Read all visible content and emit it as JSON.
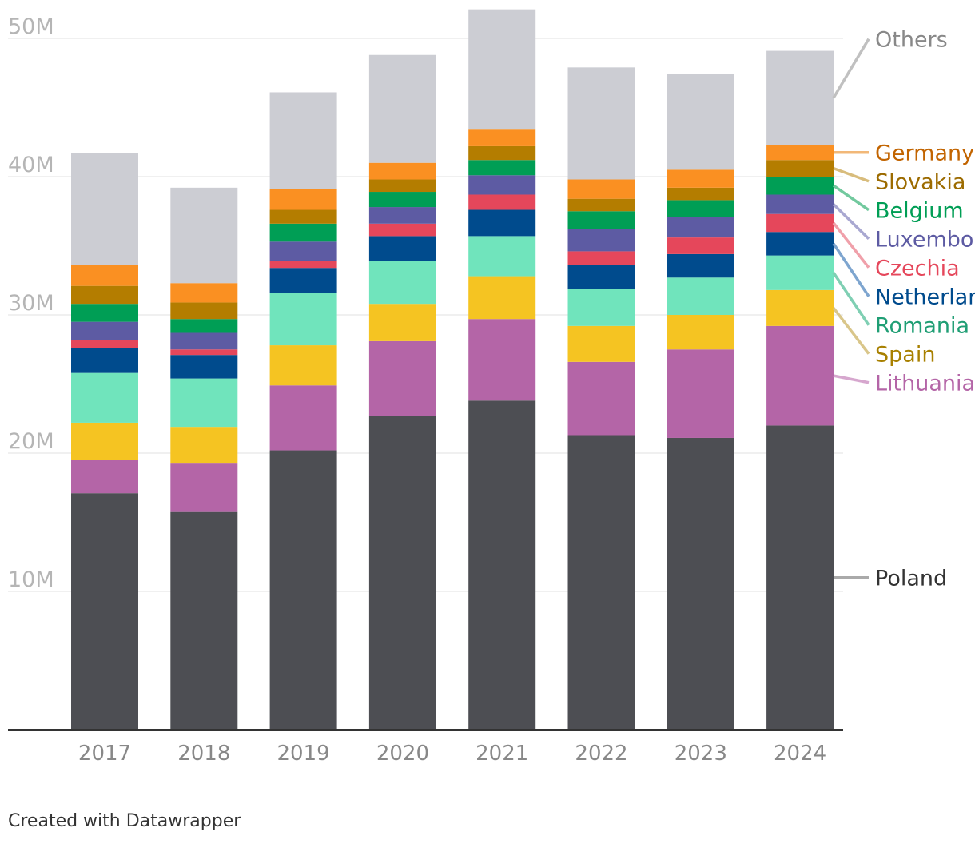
{
  "chart_data": {
    "type": "bar",
    "stacked": true,
    "title": "",
    "xlabel": "",
    "ylabel": "",
    "ylim": [
      0,
      51000000
    ],
    "y_ticks": [
      {
        "value": 10000000,
        "label": "10M"
      },
      {
        "value": 20000000,
        "label": "20M"
      },
      {
        "value": 30000000,
        "label": "30M"
      },
      {
        "value": 40000000,
        "label": "40M"
      },
      {
        "value": 50000000,
        "label": "50M"
      }
    ],
    "categories": [
      "2017",
      "2018",
      "2019",
      "2020",
      "2021",
      "2022",
      "2023",
      "2024"
    ],
    "series": [
      {
        "name": "Poland",
        "color": "#4d4e53",
        "label_color": "#333333",
        "leader_color": "#aaaaaa",
        "values": [
          17100000,
          15800000,
          20200000,
          22700000,
          23800000,
          21300000,
          21100000,
          22000000
        ]
      },
      {
        "name": "Lithuania",
        "color": "#b465a7",
        "label_color": "#b465a7",
        "leader_color": "#d6a7ce",
        "values": [
          2400000,
          3500000,
          4700000,
          5400000,
          5900000,
          5300000,
          6400000,
          7200000
        ]
      },
      {
        "name": "Spain",
        "color": "#f5c422",
        "label_color": "#a88000",
        "leader_color": "#d9c68a",
        "values": [
          2700000,
          2600000,
          2900000,
          2700000,
          3100000,
          2600000,
          2500000,
          2600000
        ]
      },
      {
        "name": "Romania",
        "color": "#70e4bc",
        "label_color": "#1f9e74",
        "leader_color": "#7fcfb3",
        "values": [
          3600000,
          3500000,
          3800000,
          3100000,
          2900000,
          2700000,
          2700000,
          2500000
        ]
      },
      {
        "name": "Netherlands",
        "color": "#004b8d",
        "label_color": "#004b8d",
        "leader_color": "#7ea5cf",
        "values": [
          1800000,
          1700000,
          1800000,
          1800000,
          1900000,
          1700000,
          1700000,
          1700000
        ]
      },
      {
        "name": "Czechia",
        "color": "#e5475b",
        "label_color": "#e5475b",
        "leader_color": "#f0a0aa",
        "values": [
          600000,
          400000,
          500000,
          900000,
          1100000,
          1000000,
          1200000,
          1300000
        ]
      },
      {
        "name": "Luxembourg",
        "color": "#5d5ba3",
        "label_color": "#5d5ba3",
        "leader_color": "#a9a8d1",
        "values": [
          1300000,
          1200000,
          1400000,
          1200000,
          1400000,
          1600000,
          1500000,
          1400000
        ]
      },
      {
        "name": "Belgium",
        "color": "#009e55",
        "label_color": "#009e55",
        "leader_color": "#72c99e",
        "values": [
          1300000,
          1000000,
          1300000,
          1100000,
          1100000,
          1300000,
          1200000,
          1300000
        ]
      },
      {
        "name": "Slovakia",
        "color": "#b47d00",
        "label_color": "#9c6b00",
        "leader_color": "#d8bc7c",
        "values": [
          1300000,
          1200000,
          1000000,
          900000,
          1000000,
          900000,
          900000,
          1200000
        ]
      },
      {
        "name": "Germany",
        "color": "#fa9022",
        "label_color": "#c26400",
        "leader_color": "#f2b878",
        "values": [
          1500000,
          1400000,
          1500000,
          1200000,
          1200000,
          1400000,
          1300000,
          1100000
        ]
      },
      {
        "name": "Others",
        "color": "#cccdd3",
        "label_color": "#888888",
        "leader_color": "#c0c0c0",
        "values": [
          8100000,
          6900000,
          7000000,
          7800000,
          8700000,
          8100000,
          6900000,
          6800000
        ]
      }
    ],
    "grid": true,
    "legend": "right, direct labels"
  },
  "credit": "Created with Datawrapper"
}
